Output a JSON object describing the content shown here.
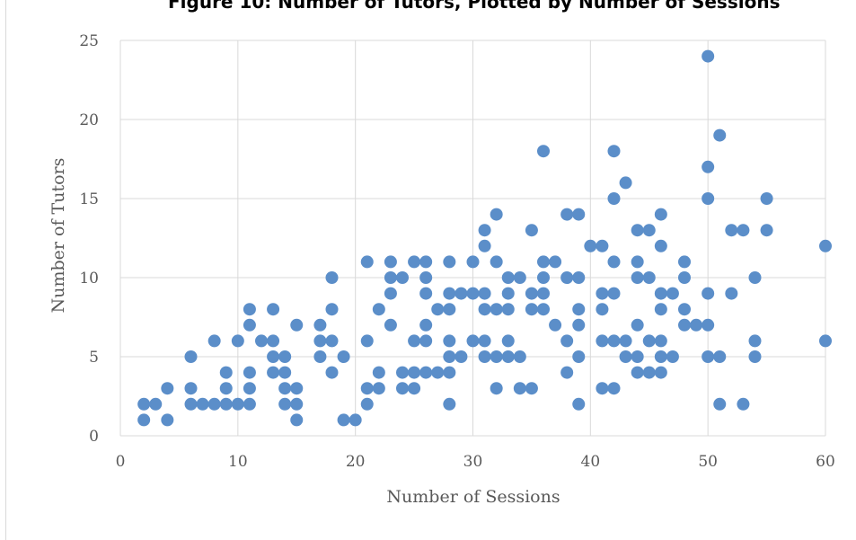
{
  "chart_data": {
    "type": "scatter",
    "title": "Figure 10: Number of Tutors, Plotted by Number of Sessions",
    "xlabel": "Number of Sessions",
    "ylabel": "Number of Tutors",
    "xlim": [
      0,
      60
    ],
    "ylim": [
      0,
      25
    ],
    "xticks": [
      "0",
      "10",
      "20",
      "30",
      "40",
      "50",
      "60"
    ],
    "yticks": [
      "0",
      "5",
      "10",
      "15",
      "20",
      "25"
    ],
    "grid": true,
    "legend": "none",
    "colors": {
      "marker": "#5b8ec9",
      "grid": "#d9d9d9",
      "text": "#595959"
    },
    "points": [
      [
        2,
        2
      ],
      [
        2,
        1
      ],
      [
        3,
        2
      ],
      [
        4,
        3
      ],
      [
        4,
        1
      ],
      [
        6,
        5
      ],
      [
        6,
        3
      ],
      [
        6,
        2
      ],
      [
        7,
        2
      ],
      [
        8,
        6
      ],
      [
        8,
        2
      ],
      [
        9,
        4
      ],
      [
        9,
        3
      ],
      [
        9,
        2
      ],
      [
        10,
        6
      ],
      [
        10,
        2
      ],
      [
        11,
        8
      ],
      [
        11,
        7
      ],
      [
        11,
        4
      ],
      [
        11,
        3
      ],
      [
        11,
        2
      ],
      [
        12,
        6
      ],
      [
        13,
        8
      ],
      [
        13,
        6
      ],
      [
        13,
        5
      ],
      [
        13,
        4
      ],
      [
        14,
        5
      ],
      [
        14,
        4
      ],
      [
        14,
        3
      ],
      [
        14,
        2
      ],
      [
        15,
        7
      ],
      [
        15,
        3
      ],
      [
        15,
        2
      ],
      [
        15,
        1
      ],
      [
        17,
        7
      ],
      [
        17,
        6
      ],
      [
        17,
        5
      ],
      [
        18,
        10
      ],
      [
        18,
        8
      ],
      [
        18,
        6
      ],
      [
        18,
        4
      ],
      [
        19,
        5
      ],
      [
        19,
        1
      ],
      [
        20,
        1
      ],
      [
        21,
        11
      ],
      [
        21,
        6
      ],
      [
        21,
        3
      ],
      [
        21,
        2
      ],
      [
        22,
        8
      ],
      [
        22,
        4
      ],
      [
        22,
        3
      ],
      [
        23,
        11
      ],
      [
        23,
        10
      ],
      [
        23,
        9
      ],
      [
        23,
        7
      ],
      [
        24,
        10
      ],
      [
        24,
        4
      ],
      [
        24,
        3
      ],
      [
        25,
        11
      ],
      [
        25,
        6
      ],
      [
        25,
        4
      ],
      [
        25,
        3
      ],
      [
        26,
        11
      ],
      [
        26,
        10
      ],
      [
        26,
        9
      ],
      [
        26,
        7
      ],
      [
        26,
        6
      ],
      [
        26,
        4
      ],
      [
        27,
        8
      ],
      [
        27,
        4
      ],
      [
        28,
        11
      ],
      [
        28,
        9
      ],
      [
        28,
        8
      ],
      [
        28,
        6
      ],
      [
        28,
        5
      ],
      [
        28,
        4
      ],
      [
        28,
        2
      ],
      [
        29,
        9
      ],
      [
        29,
        5
      ],
      [
        30,
        11
      ],
      [
        30,
        9
      ],
      [
        30,
        6
      ],
      [
        31,
        13
      ],
      [
        31,
        12
      ],
      [
        31,
        9
      ],
      [
        31,
        8
      ],
      [
        31,
        6
      ],
      [
        31,
        5
      ],
      [
        32,
        14
      ],
      [
        32,
        11
      ],
      [
        32,
        8
      ],
      [
        32,
        5
      ],
      [
        32,
        3
      ],
      [
        33,
        10
      ],
      [
        33,
        9
      ],
      [
        33,
        8
      ],
      [
        33,
        6
      ],
      [
        33,
        5
      ],
      [
        34,
        10
      ],
      [
        34,
        5
      ],
      [
        34,
        3
      ],
      [
        35,
        13
      ],
      [
        35,
        9
      ],
      [
        35,
        8
      ],
      [
        35,
        3
      ],
      [
        36,
        18
      ],
      [
        36,
        11
      ],
      [
        36,
        10
      ],
      [
        36,
        9
      ],
      [
        36,
        8
      ],
      [
        37,
        11
      ],
      [
        37,
        7
      ],
      [
        38,
        14
      ],
      [
        38,
        10
      ],
      [
        38,
        6
      ],
      [
        38,
        4
      ],
      [
        39,
        14
      ],
      [
        39,
        10
      ],
      [
        39,
        8
      ],
      [
        39,
        7
      ],
      [
        39,
        5
      ],
      [
        39,
        2
      ],
      [
        40,
        12
      ],
      [
        41,
        12
      ],
      [
        41,
        9
      ],
      [
        41,
        8
      ],
      [
        41,
        6
      ],
      [
        41,
        3
      ],
      [
        42,
        18
      ],
      [
        42,
        15
      ],
      [
        42,
        11
      ],
      [
        42,
        9
      ],
      [
        42,
        6
      ],
      [
        42,
        3
      ],
      [
        43,
        16
      ],
      [
        43,
        6
      ],
      [
        43,
        5
      ],
      [
        44,
        13
      ],
      [
        44,
        11
      ],
      [
        44,
        10
      ],
      [
        44,
        7
      ],
      [
        44,
        5
      ],
      [
        44,
        4
      ],
      [
        45,
        13
      ],
      [
        45,
        10
      ],
      [
        45,
        6
      ],
      [
        45,
        4
      ],
      [
        46,
        14
      ],
      [
        46,
        12
      ],
      [
        46,
        9
      ],
      [
        46,
        8
      ],
      [
        46,
        6
      ],
      [
        46,
        5
      ],
      [
        46,
        4
      ],
      [
        47,
        9
      ],
      [
        47,
        5
      ],
      [
        48,
        11
      ],
      [
        48,
        10
      ],
      [
        48,
        8
      ],
      [
        48,
        7
      ],
      [
        49,
        7
      ],
      [
        50,
        24
      ],
      [
        50,
        17
      ],
      [
        50,
        15
      ],
      [
        50,
        9
      ],
      [
        50,
        7
      ],
      [
        50,
        5
      ],
      [
        51,
        19
      ],
      [
        51,
        5
      ],
      [
        51,
        2
      ],
      [
        52,
        13
      ],
      [
        52,
        9
      ],
      [
        53,
        13
      ],
      [
        53,
        2
      ],
      [
        54,
        10
      ],
      [
        54,
        6
      ],
      [
        54,
        5
      ],
      [
        55,
        15
      ],
      [
        55,
        13
      ],
      [
        60,
        12
      ],
      [
        60,
        6
      ]
    ]
  }
}
